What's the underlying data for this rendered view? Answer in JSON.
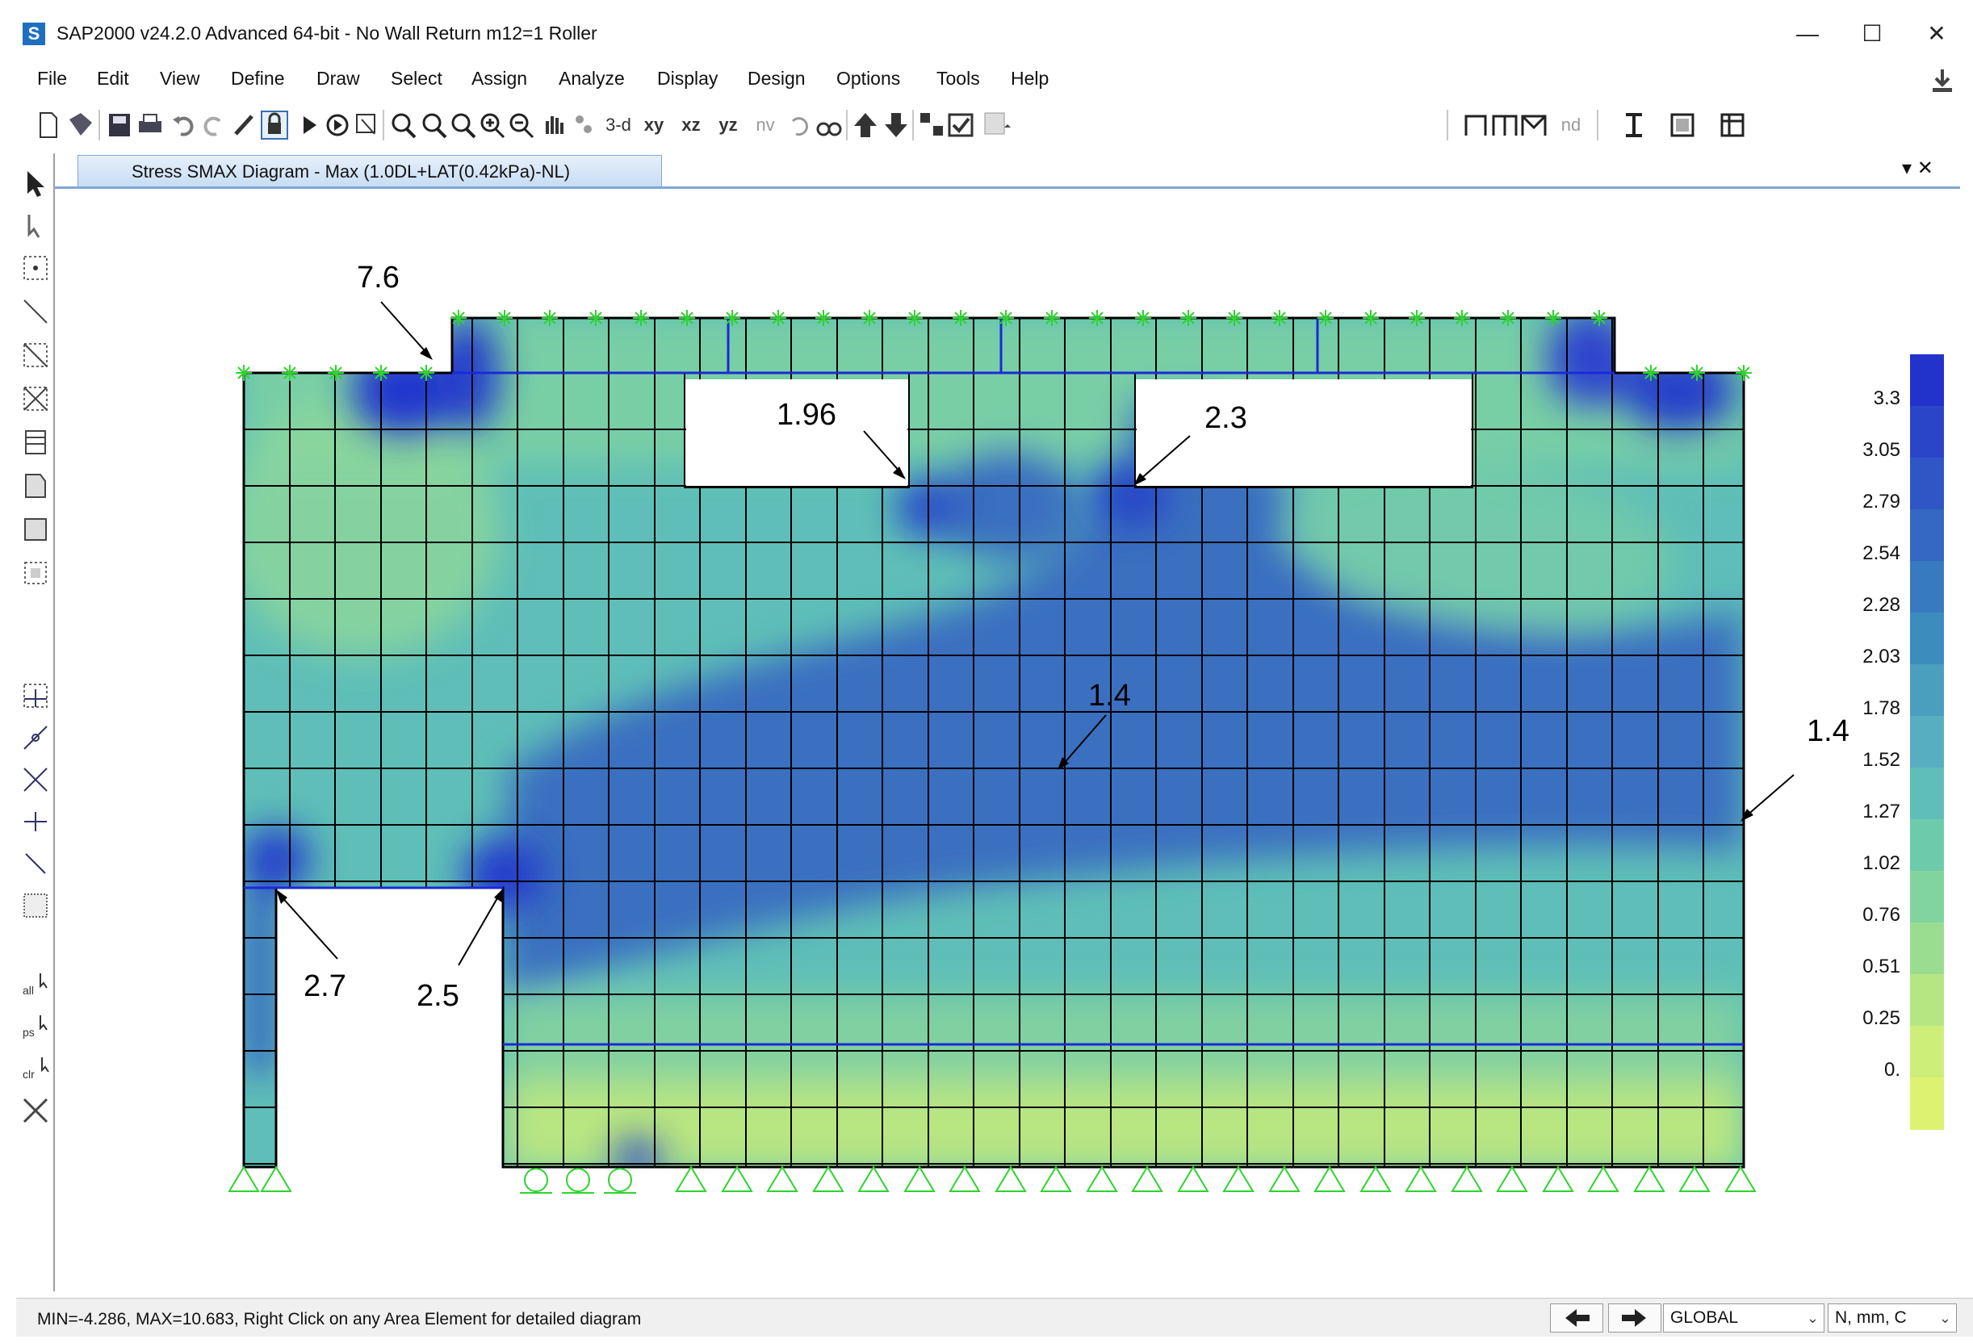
{
  "window": {
    "app_letter": "S",
    "title": "SAP2000 v24.2.0 Advanced 64-bit - No Wall Return m12=1 Roller",
    "minimize": "—",
    "maximize": "☐",
    "close": "✕"
  },
  "menu": [
    "File",
    "Edit",
    "View",
    "Define",
    "Draw",
    "Select",
    "Assign",
    "Analyze",
    "Display",
    "Design",
    "Options",
    "Tools",
    "Help"
  ],
  "toolbar": {
    "view_3d": "3-d",
    "view_xy": "xy",
    "view_xz": "xz",
    "view_yz": "yz",
    "view_nv": "nv",
    "nd": "nd"
  },
  "tab": {
    "label": "Stress SMAX Diagram - Max   (1.0DL+LAT(0.42kPa)-NL)",
    "controls": "▾ ✕"
  },
  "annotations": [
    {
      "label": "7.6"
    },
    {
      "label": "1.96"
    },
    {
      "label": "2.3"
    },
    {
      "label": "1.4"
    },
    {
      "label": "1.4"
    },
    {
      "label": "2.7"
    },
    {
      "label": "2.5"
    }
  ],
  "legend": {
    "values": [
      "3.3",
      "3.05",
      "2.79",
      "2.54",
      "2.28",
      "2.03",
      "1.78",
      "1.52",
      "1.27",
      "1.02",
      "0.76",
      "0.51",
      "0.25",
      "0."
    ],
    "colors": [
      "#2233cc",
      "#2a45c8",
      "#3056c5",
      "#3468c2",
      "#387ac0",
      "#3d8cbe",
      "#4a9fbe",
      "#56aec0",
      "#5fbfb8",
      "#6dcbac",
      "#82d49f",
      "#9bdd90",
      "#b5e683",
      "#cdee78",
      "#dcf270"
    ]
  },
  "status": {
    "text": "MIN=-4.286, MAX=10.683, Right Click on any Area Element for detailed diagram",
    "coord_system": "GLOBAL",
    "units": "N, mm, C"
  }
}
